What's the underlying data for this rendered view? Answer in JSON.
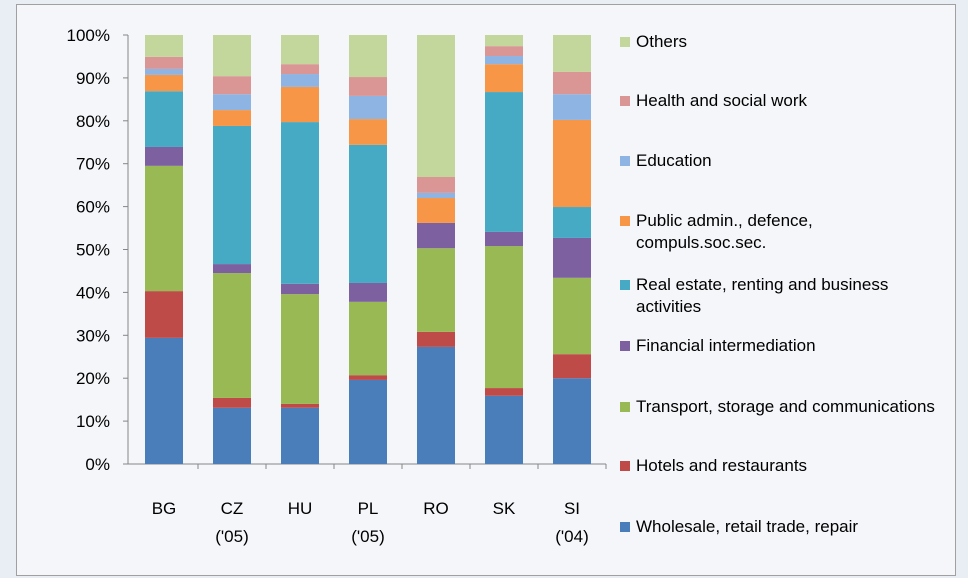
{
  "chart_data": {
    "type": "stacked_bar",
    "categories": [
      "BG",
      "CZ ('05)",
      "HU",
      "PL ('05)",
      "RO",
      "SK",
      "SI ('04)"
    ],
    "series": [
      {
        "name": "Wholesale, retail trade, repair",
        "color": "#4a7ebb",
        "values": [
          29.4,
          13.1,
          13.1,
          19.6,
          27.3,
          15.9,
          20.0
        ]
      },
      {
        "name": "Hotels and restaurants",
        "color": "#be4b48",
        "values": [
          10.9,
          2.3,
          0.9,
          1.1,
          3.5,
          1.8,
          5.6
        ]
      },
      {
        "name": "Transport, storage and communications",
        "color": "#98b954",
        "values": [
          29.2,
          29.1,
          25.6,
          17.1,
          19.5,
          33.1,
          17.8
        ]
      },
      {
        "name": "Financial intermediation",
        "color": "#7d60a0",
        "values": [
          4.4,
          2.1,
          2.4,
          4.4,
          5.9,
          3.3,
          9.3
        ]
      },
      {
        "name": "Real estate, renting and business activities",
        "color": "#46aac5",
        "values": [
          13.0,
          32.2,
          37.7,
          32.2,
          0,
          32.6,
          7.2
        ]
      },
      {
        "name": "Public admin., defence, compuls.soc.sec.",
        "color": "#f79646",
        "values": [
          3.8,
          3.7,
          8.2,
          6.0,
          5.8,
          6.5,
          20.3
        ]
      },
      {
        "name": "Education",
        "color": "#8eb4e3",
        "values": [
          1.4,
          3.7,
          3.0,
          5.4,
          1.2,
          1.9,
          6.0
        ]
      },
      {
        "name": "Health and social work",
        "color": "#d99694",
        "values": [
          2.8,
          4.2,
          2.3,
          4.4,
          3.7,
          2.3,
          5.2
        ]
      },
      {
        "name": "Others",
        "color": "#c3d69b",
        "values": [
          5.1,
          9.6,
          6.8,
          9.8,
          33.1,
          2.6,
          8.6
        ]
      }
    ],
    "ylim": [
      0,
      100
    ],
    "yticks": [
      {
        "value": 0,
        "label": "0%"
      },
      {
        "value": 10,
        "label": "10%"
      },
      {
        "value": 20,
        "label": "20%"
      },
      {
        "value": 30,
        "label": "30%"
      },
      {
        "value": 40,
        "label": "40%"
      },
      {
        "value": 50,
        "label": "50%"
      },
      {
        "value": 60,
        "label": "60%"
      },
      {
        "value": 70,
        "label": "70%"
      },
      {
        "value": 80,
        "label": "80%"
      },
      {
        "value": 90,
        "label": "90%"
      },
      {
        "value": 100,
        "label": "100%"
      }
    ],
    "legend": "right"
  }
}
